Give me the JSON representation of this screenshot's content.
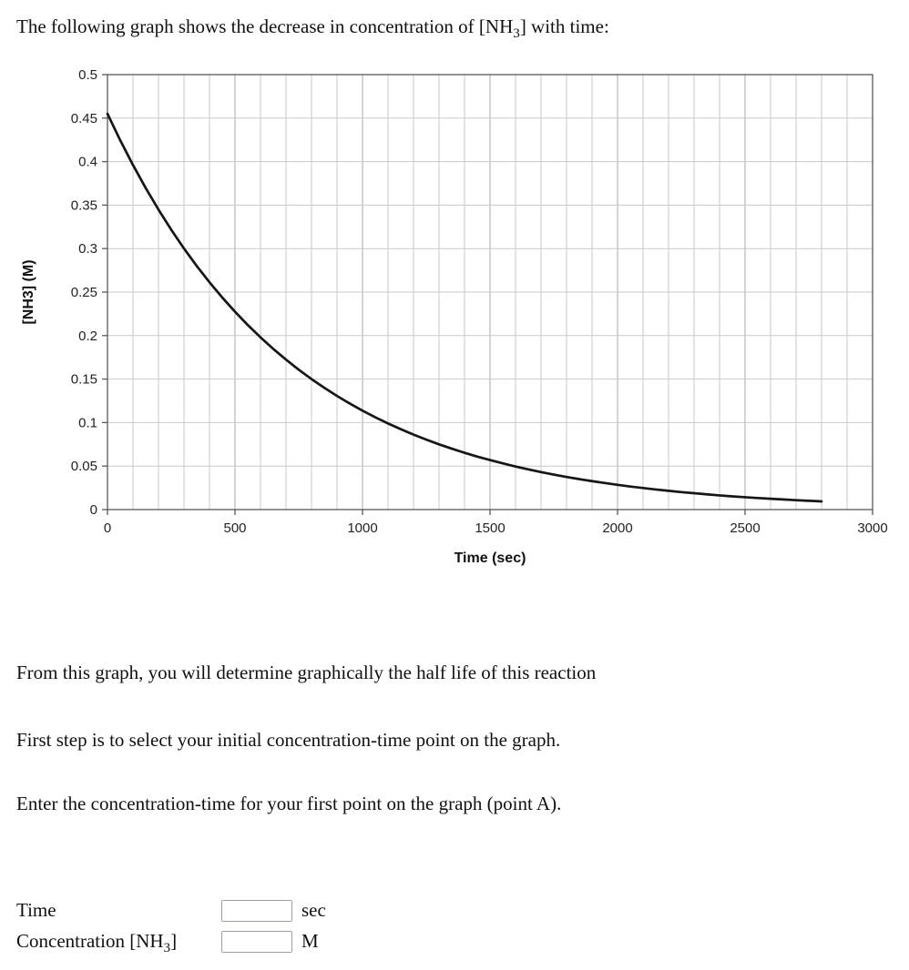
{
  "intro": {
    "pre": "The following graph shows the decrease in concentration of [NH",
    "sub": "3",
    "post": "] with time:"
  },
  "paragraphs": {
    "p1": "From this graph, you will determine graphically the half life of this reaction",
    "p2": "First step is to select your initial concentration-time point on the graph.",
    "p3": "Enter the concentration-time for your first point on the graph (point A)."
  },
  "form": {
    "time_label": "Time",
    "time_value": "",
    "time_unit": "sec",
    "conc_label_pre": "Concentration [NH",
    "conc_label_sub": "3",
    "conc_label_post": "]",
    "conc_value": "",
    "conc_unit": "M"
  },
  "chart_data": {
    "type": "line",
    "title": "",
    "xlabel": "Time (sec)",
    "ylabel": "[NH3] (M)",
    "xlim": [
      0,
      3000
    ],
    "ylim": [
      0,
      0.5
    ],
    "x_major": 500,
    "x_minor": 100,
    "x_ticks": [
      "0",
      "500",
      "1000",
      "1500",
      "2000",
      "2500",
      "3000"
    ],
    "y_ticks": [
      "0",
      "0.05",
      "0.1",
      "0.15",
      "0.2",
      "0.25",
      "0.3",
      "0.35",
      "0.4",
      "0.45",
      "0.5"
    ],
    "grid": true,
    "legend": "none",
    "colors": {
      "grid_minor": "#c9c9c9",
      "grid_major": "#a8a8a8",
      "axis": "#595959",
      "curve": "#161616"
    },
    "series": [
      {
        "name": "[NH3]",
        "x": [
          0,
          50,
          100,
          150,
          200,
          250,
          300,
          350,
          400,
          450,
          500,
          550,
          600,
          650,
          700,
          750,
          800,
          850,
          900,
          950,
          1000,
          1050,
          1100,
          1150,
          1200,
          1250,
          1300,
          1350,
          1400,
          1450,
          1500,
          1550,
          1600,
          1650,
          1700,
          1750,
          1800,
          1850,
          1900,
          1950,
          2000,
          2050,
          2100,
          2150,
          2200,
          2250,
          2300,
          2350,
          2400,
          2450,
          2500,
          2550,
          2600,
          2650,
          2700,
          2750,
          2800
        ],
        "y": [
          0.455,
          0.4245,
          0.3961,
          0.3696,
          0.3448,
          0.3217,
          0.3001,
          0.28,
          0.2613,
          0.2438,
          0.2275,
          0.2122,
          0.198,
          0.1847,
          0.1724,
          0.1608,
          0.15,
          0.14,
          0.1306,
          0.1219,
          0.1137,
          0.1061,
          0.099,
          0.0924,
          0.0862,
          0.0804,
          0.075,
          0.07,
          0.0653,
          0.0609,
          0.0569,
          0.0531,
          0.0495,
          0.0462,
          0.0431,
          0.0402,
          0.0375,
          0.035,
          0.0327,
          0.0305,
          0.0284,
          0.0265,
          0.0248,
          0.0231,
          0.0216,
          0.0201,
          0.0188,
          0.0175,
          0.0163,
          0.0152,
          0.0142,
          0.0133,
          0.0124,
          0.0116,
          0.0108,
          0.0101,
          0.0094
        ]
      }
    ]
  }
}
